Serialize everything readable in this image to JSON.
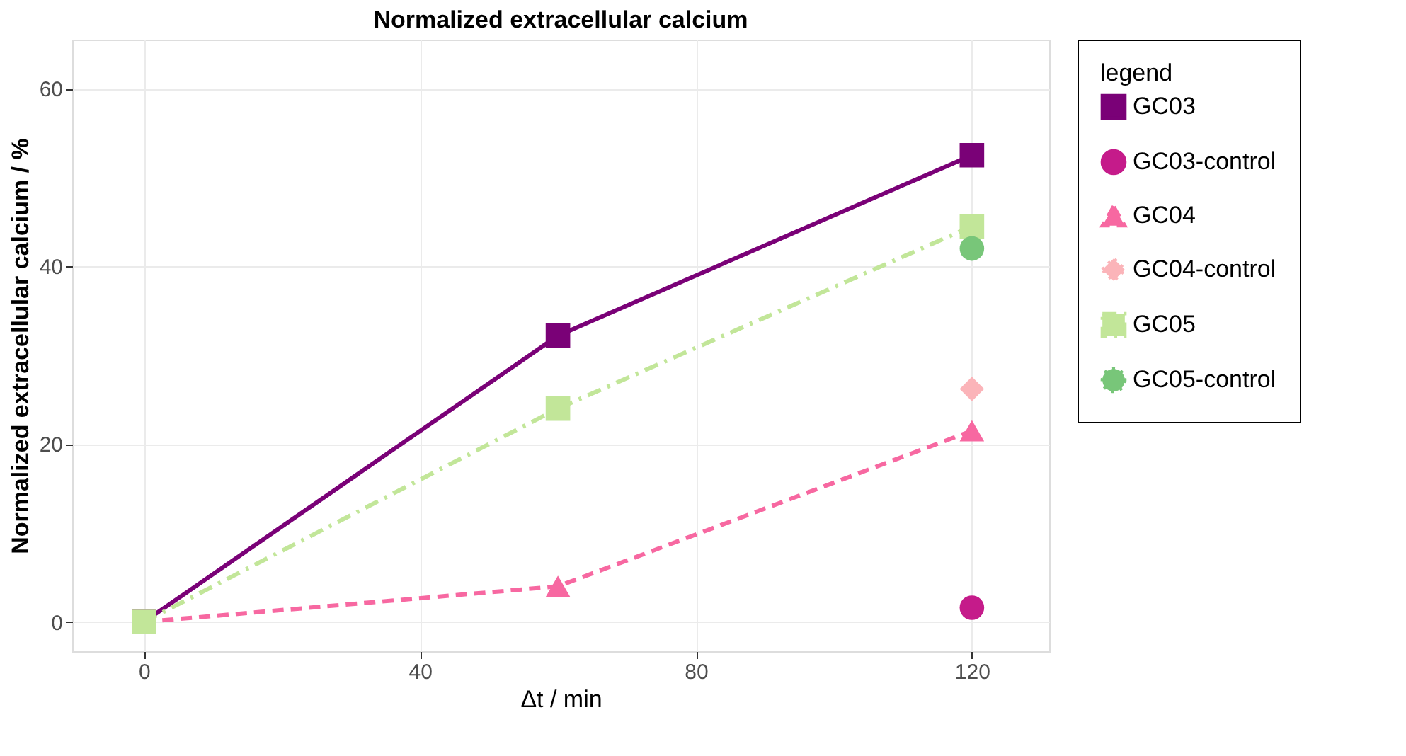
{
  "chart_data": {
    "type": "line",
    "title": "Normalized extracellular calcium",
    "xlabel": "Δt / min",
    "ylabel": "Normalized extracellular calcium / %",
    "legend_title": "legend",
    "xlim": [
      -10.4,
      131.2
    ],
    "xticks": [
      0,
      40,
      80,
      120
    ],
    "ylim": [
      -3.3,
      65.5
    ],
    "yticks": [
      0,
      20,
      40,
      60
    ],
    "grid": true,
    "legend": "right",
    "series": [
      {
        "name": "GC03",
        "color": "#7a0177",
        "x": [
          0,
          60,
          120
        ],
        "values": [
          0,
          32.2,
          52.5
        ],
        "marker": "square",
        "line_style": "solid"
      },
      {
        "name": "GC03-control",
        "color": "#c51b8a",
        "x": [
          120
        ],
        "values": [
          1.6
        ],
        "marker": "circle",
        "line_style": "solid"
      },
      {
        "name": "GC04",
        "color": "#f768a1",
        "x": [
          0,
          60,
          120
        ],
        "values": [
          0,
          4,
          21.5
        ],
        "marker": "triangle",
        "line_style": "dashed"
      },
      {
        "name": "GC04-control",
        "color": "#fbb4b9",
        "x": [
          120
        ],
        "values": [
          26.2
        ],
        "marker": "diamond",
        "line_style": "dotted"
      },
      {
        "name": "GC05",
        "color": "#c2e699",
        "x": [
          0,
          60,
          120
        ],
        "values": [
          0,
          24,
          44.5
        ],
        "marker": "square",
        "line_style": "dashdot"
      },
      {
        "name": "GC05-control",
        "color": "#78c679",
        "x": [
          120
        ],
        "values": [
          42
        ],
        "marker": "circle",
        "line_style": "dotted"
      }
    ]
  }
}
